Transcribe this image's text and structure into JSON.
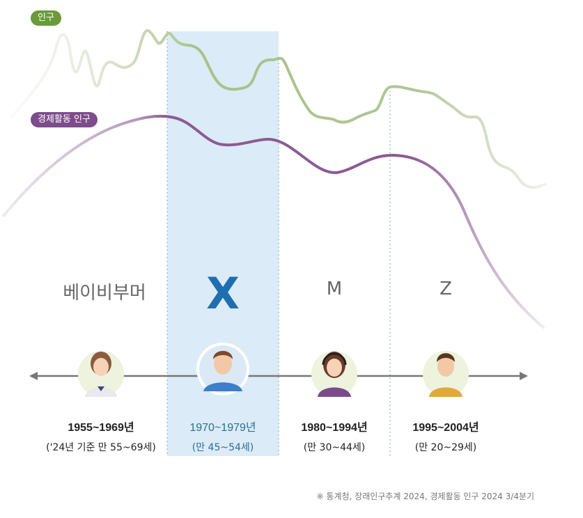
{
  "legend": {
    "population": {
      "label": "인구",
      "color": "#6a9a3a"
    },
    "economic": {
      "label": "경제활동 인구",
      "color": "#7d4c8a"
    }
  },
  "highlight_color": "#dcebf8",
  "generations": [
    {
      "name": "베이비부머",
      "years": "1955~1969년",
      "age": "('24년 기준 만 55~69세)",
      "highlighted": false,
      "avatar": "woman-avatar"
    },
    {
      "name": "X",
      "years": "1970~1979년",
      "age": "(만 45~54세)",
      "highlighted": true,
      "avatar": "man-avatar"
    },
    {
      "name": "M",
      "years": "1980~1994년",
      "age": "(만 30~44세)",
      "highlighted": false,
      "avatar": "woman-headset-avatar"
    },
    {
      "name": "Z",
      "years": "1995~2004년",
      "age": "(만 20~29세)",
      "highlighted": false,
      "avatar": "young-man-avatar"
    }
  ],
  "source": "※ 통계청, 장래인구추계 2024, 경제활동 인구 2024  3/4분기"
}
